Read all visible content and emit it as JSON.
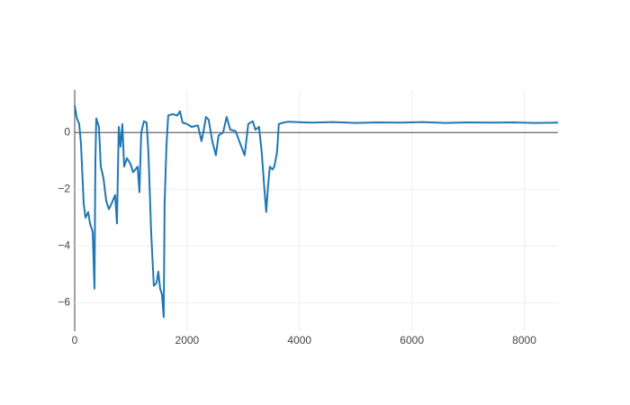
{
  "chart_data": {
    "type": "line",
    "x": [
      0,
      40,
      80,
      112,
      160,
      192,
      240,
      272,
      320,
      336,
      352,
      368,
      384,
      432,
      464,
      512,
      560,
      608,
      656,
      720,
      752,
      784,
      816,
      848,
      880,
      928,
      992,
      1040,
      1120,
      1152,
      1184,
      1232,
      1280,
      1312,
      1360,
      1408,
      1456,
      1488,
      1520,
      1552,
      1584,
      1600,
      1632,
      1664,
      1744,
      1824,
      1872,
      1920,
      2000,
      2080,
      2192,
      2256,
      2288,
      2336,
      2384,
      2448,
      2512,
      2560,
      2640,
      2704,
      2768,
      2864,
      2928,
      3024,
      3088,
      3168,
      3216,
      3280,
      3328,
      3376,
      3408,
      3440,
      3472,
      3520,
      3552,
      3600,
      3632,
      3712,
      3792,
      4200,
      4600,
      5000,
      5400,
      5800,
      6200,
      6600,
      7000,
      7400,
      7800,
      8200,
      8600
    ],
    "series": [
      {
        "color": "#1f77b4",
        "values": [
          0.95,
          0.5,
          0.3,
          -0.4,
          -2.5,
          -3.0,
          -2.8,
          -3.2,
          -3.5,
          -4.5,
          -5.5,
          -1.0,
          0.5,
          0.2,
          -1.2,
          -1.6,
          -2.4,
          -2.7,
          -2.5,
          -2.2,
          -3.2,
          0.2,
          -0.5,
          0.3,
          -1.2,
          -0.9,
          -1.1,
          -1.4,
          -1.2,
          -2.1,
          0.0,
          0.4,
          0.35,
          -0.7,
          -3.5,
          -5.4,
          -5.3,
          -4.9,
          -5.5,
          -5.7,
          -6.5,
          -2.5,
          -0.5,
          0.6,
          0.65,
          0.6,
          0.75,
          0.35,
          0.3,
          0.2,
          0.25,
          -0.3,
          0.0,
          0.55,
          0.45,
          -0.3,
          -0.8,
          -0.1,
          0.0,
          0.55,
          0.1,
          0.05,
          -0.3,
          -0.8,
          0.3,
          0.4,
          0.1,
          0.2,
          -0.7,
          -2.0,
          -2.8,
          -1.9,
          -1.2,
          -1.3,
          -1.2,
          -0.7,
          0.3,
          0.35,
          0.38,
          0.35,
          0.37,
          0.34,
          0.36,
          0.35,
          0.37,
          0.34,
          0.36,
          0.35,
          0.36,
          0.34,
          0.35
        ]
      }
    ],
    "xlim": [
      0,
      8600
    ],
    "ylim": [
      -7,
      1.5
    ],
    "xticks": [
      0,
      2000,
      4000,
      6000,
      8000
    ],
    "yticks": [
      {
        "value": -6,
        "label": "−6"
      },
      {
        "value": -4,
        "label": "−4"
      },
      {
        "value": -2,
        "label": "−2"
      },
      0
    ],
    "grid": true
  }
}
